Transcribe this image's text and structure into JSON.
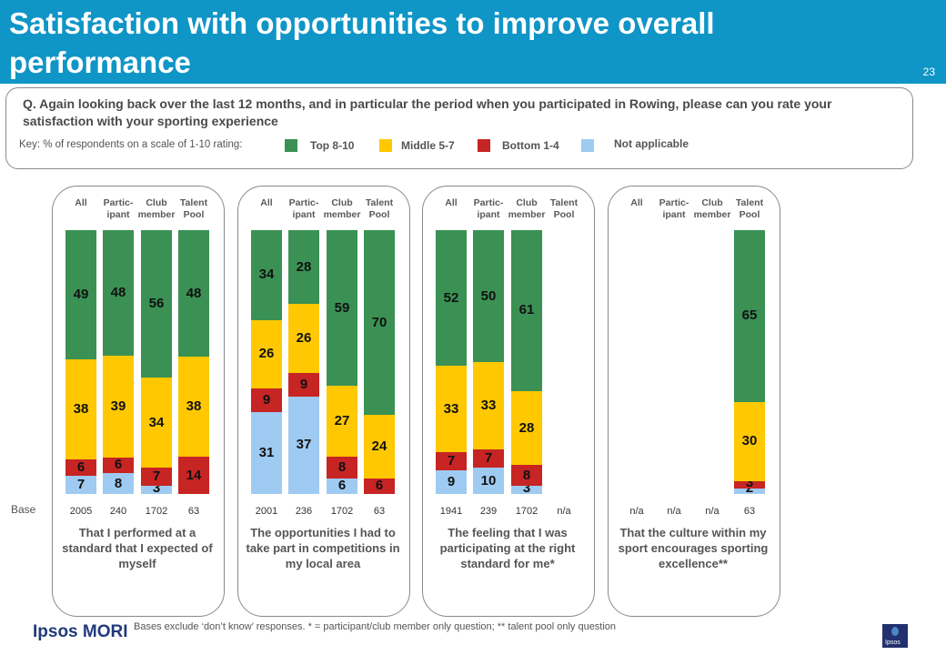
{
  "header": {
    "title": "Satisfaction with opportunities to improve overall performance",
    "page_number": "23"
  },
  "question": {
    "text": "Q. Again looking back over the last 12 months, and in particular the period when you participated in Rowing, please can you rate your satisfaction with your sporting experience",
    "key_label": "Key: % of respondents on a scale of 1-10 rating:"
  },
  "legend": [
    {
      "label": "Top 8-10",
      "color": "#3a9153"
    },
    {
      "label": "Middle 5-7",
      "color": "#ffc800"
    },
    {
      "label": "Bottom 1-4",
      "color": "#c72424"
    },
    {
      "label": "Not applicable",
      "color": "#9fcaf2"
    }
  ],
  "base_label": "Base",
  "footnote": "Bases exclude ‘don’t know’ responses. * = participant/club member only question; ** talent pool only question",
  "logo_text": "Ipsos MORI",
  "corner_logo_text": "Ipsos",
  "chart_data": [
    {
      "type": "bar",
      "stacked": true,
      "title": "That I performed at a standard that I expected of myself",
      "categories": [
        "All",
        "Partic-\nipant",
        "Club\nmember",
        "Talent\nPool"
      ],
      "bases": [
        "2005",
        "240",
        "1702",
        "63"
      ],
      "series": [
        {
          "name": "Not applicable",
          "values": [
            7,
            8,
            3,
            0
          ]
        },
        {
          "name": "Bottom 1-4",
          "values": [
            6,
            6,
            7,
            14
          ]
        },
        {
          "name": "Middle 5-7",
          "values": [
            38,
            39,
            34,
            38
          ]
        },
        {
          "name": "Top 8-10",
          "values": [
            49,
            48,
            56,
            48
          ]
        }
      ]
    },
    {
      "type": "bar",
      "stacked": true,
      "title": "The opportunities I had to take part in competitions in my local area",
      "categories": [
        "All",
        "Partic-\nipant",
        "Club\nmember",
        "Talent\nPool"
      ],
      "bases": [
        "2001",
        "236",
        "1702",
        "63"
      ],
      "series": [
        {
          "name": "Not applicable",
          "values": [
            31,
            37,
            6,
            0
          ]
        },
        {
          "name": "Bottom 1-4",
          "values": [
            9,
            9,
            8,
            6
          ]
        },
        {
          "name": "Middle 5-7",
          "values": [
            26,
            26,
            27,
            24
          ]
        },
        {
          "name": "Top 8-10",
          "values": [
            34,
            28,
            59,
            70
          ]
        }
      ]
    },
    {
      "type": "bar",
      "stacked": true,
      "title": "The feeling that I was participating at the right standard for me*",
      "categories": [
        "All",
        "Partic-\nipant",
        "Club\nmember",
        "Talent\nPool"
      ],
      "bases": [
        "1941",
        "239",
        "1702",
        "n/a"
      ],
      "series": [
        {
          "name": "Not applicable",
          "values": [
            9,
            10,
            3,
            null
          ]
        },
        {
          "name": "Bottom 1-4",
          "values": [
            7,
            7,
            8,
            null
          ]
        },
        {
          "name": "Middle 5-7",
          "values": [
            33,
            33,
            28,
            null
          ]
        },
        {
          "name": "Top 8-10",
          "values": [
            52,
            50,
            61,
            null
          ]
        }
      ]
    },
    {
      "type": "bar",
      "stacked": true,
      "title": "That the culture within my sport encourages sporting excellence**",
      "categories": [
        "All",
        "Partic-\nipant",
        "Club\nmember",
        "Talent\nPool"
      ],
      "bases": [
        "n/a",
        "n/a",
        "n/a",
        "63"
      ],
      "series": [
        {
          "name": "Not applicable",
          "values": [
            null,
            null,
            null,
            2
          ]
        },
        {
          "name": "Bottom 1-4",
          "values": [
            null,
            null,
            null,
            3
          ]
        },
        {
          "name": "Middle 5-7",
          "values": [
            null,
            null,
            null,
            30
          ]
        },
        {
          "name": "Top 8-10",
          "values": [
            null,
            null,
            null,
            65
          ]
        }
      ]
    }
  ]
}
